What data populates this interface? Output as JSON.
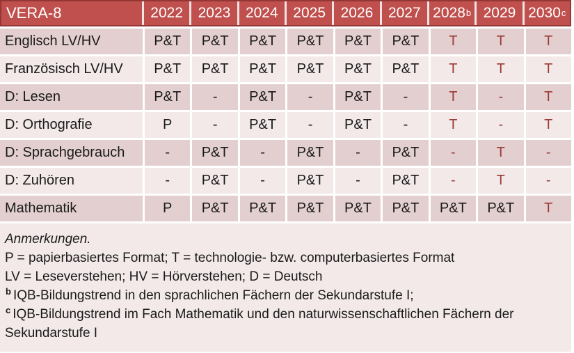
{
  "colors": {
    "header_bg": "#c0504d",
    "header_border": "#943634",
    "row_dark_bg": "#e3cfcf",
    "row_light_bg": "#f2e9e8",
    "accent_red_text": "#9c3a37"
  },
  "table": {
    "corner_label": "VERA-8",
    "columns": [
      {
        "label": "2022"
      },
      {
        "label": "2023"
      },
      {
        "label": "2024"
      },
      {
        "label": "2025"
      },
      {
        "label": "2026"
      },
      {
        "label": "2027"
      },
      {
        "label": "2028",
        "superscript": "b"
      },
      {
        "label": "2029"
      },
      {
        "label": "2030",
        "superscript": "c"
      }
    ],
    "rows": [
      {
        "label": "Englisch LV/HV",
        "shade": "dark",
        "cells": [
          {
            "text": "P&T",
            "red": false
          },
          {
            "text": "P&T",
            "red": false
          },
          {
            "text": "P&T",
            "red": false
          },
          {
            "text": "P&T",
            "red": false
          },
          {
            "text": "P&T",
            "red": false
          },
          {
            "text": "P&T",
            "red": false
          },
          {
            "text": "T",
            "red": true
          },
          {
            "text": "T",
            "red": true
          },
          {
            "text": "T",
            "red": true
          }
        ]
      },
      {
        "label": "Französisch LV/HV",
        "shade": "light",
        "cells": [
          {
            "text": "P&T",
            "red": false
          },
          {
            "text": "P&T",
            "red": false
          },
          {
            "text": "P&T",
            "red": false
          },
          {
            "text": "P&T",
            "red": false
          },
          {
            "text": "P&T",
            "red": false
          },
          {
            "text": "P&T",
            "red": false
          },
          {
            "text": "T",
            "red": true
          },
          {
            "text": "T",
            "red": true
          },
          {
            "text": "T",
            "red": true
          }
        ]
      },
      {
        "label": "D: Lesen",
        "shade": "dark",
        "cells": [
          {
            "text": "P&T",
            "red": false
          },
          {
            "text": "-",
            "red": false
          },
          {
            "text": "P&T",
            "red": false
          },
          {
            "text": "-",
            "red": false
          },
          {
            "text": "P&T",
            "red": false
          },
          {
            "text": "-",
            "red": false
          },
          {
            "text": "T",
            "red": true
          },
          {
            "text": "-",
            "red": true
          },
          {
            "text": "T",
            "red": true
          }
        ]
      },
      {
        "label": "D: Orthografie",
        "shade": "light",
        "cells": [
          {
            "text": "P",
            "red": false
          },
          {
            "text": "-",
            "red": false
          },
          {
            "text": "P&T",
            "red": false
          },
          {
            "text": "-",
            "red": false
          },
          {
            "text": "P&T",
            "red": false
          },
          {
            "text": "-",
            "red": false
          },
          {
            "text": "T",
            "red": true
          },
          {
            "text": "-",
            "red": true
          },
          {
            "text": "T",
            "red": true
          }
        ]
      },
      {
        "label": "D: Sprachgebrauch",
        "shade": "dark",
        "cells": [
          {
            "text": "-",
            "red": false
          },
          {
            "text": "P&T",
            "red": false
          },
          {
            "text": "-",
            "red": false
          },
          {
            "text": "P&T",
            "red": false
          },
          {
            "text": "-",
            "red": false
          },
          {
            "text": "P&T",
            "red": false
          },
          {
            "text": "-",
            "red": true
          },
          {
            "text": "T",
            "red": true
          },
          {
            "text": "-",
            "red": true
          }
        ]
      },
      {
        "label": "D: Zuhören",
        "shade": "light",
        "cells": [
          {
            "text": "-",
            "red": false
          },
          {
            "text": "P&T",
            "red": false
          },
          {
            "text": "-",
            "red": false
          },
          {
            "text": "P&T",
            "red": false
          },
          {
            "text": "-",
            "red": false
          },
          {
            "text": "P&T",
            "red": false
          },
          {
            "text": "-",
            "red": true
          },
          {
            "text": "T",
            "red": true
          },
          {
            "text": "-",
            "red": true
          }
        ]
      },
      {
        "label": "Mathematik",
        "shade": "dark",
        "cells": [
          {
            "text": "P",
            "red": false
          },
          {
            "text": "P&T",
            "red": false
          },
          {
            "text": "P&T",
            "red": false
          },
          {
            "text": "P&T",
            "red": false
          },
          {
            "text": "P&T",
            "red": false
          },
          {
            "text": "P&T",
            "red": false
          },
          {
            "text": "P&T",
            "red": false
          },
          {
            "text": "P&T",
            "red": false
          },
          {
            "text": "T",
            "red": true
          }
        ]
      }
    ]
  },
  "notes": {
    "heading": "Anmerkungen.",
    "lines": [
      {
        "superscript": "",
        "text": "P = papierbasiertes Format; T = technologie- bzw. computerbasiertes Format"
      },
      {
        "superscript": "",
        "text": "LV = Leseverstehen; HV = Hörverstehen; D = Deutsch"
      },
      {
        "superscript": "b",
        "text": "IQB-Bildungstrend in den sprachlichen Fächern der Sekundarstufe I;"
      },
      {
        "superscript": "c",
        "text": "IQB-Bildungstrend im Fach Mathematik und den naturwissenschaftlichen Fächern der Sekundarstufe I"
      }
    ]
  }
}
